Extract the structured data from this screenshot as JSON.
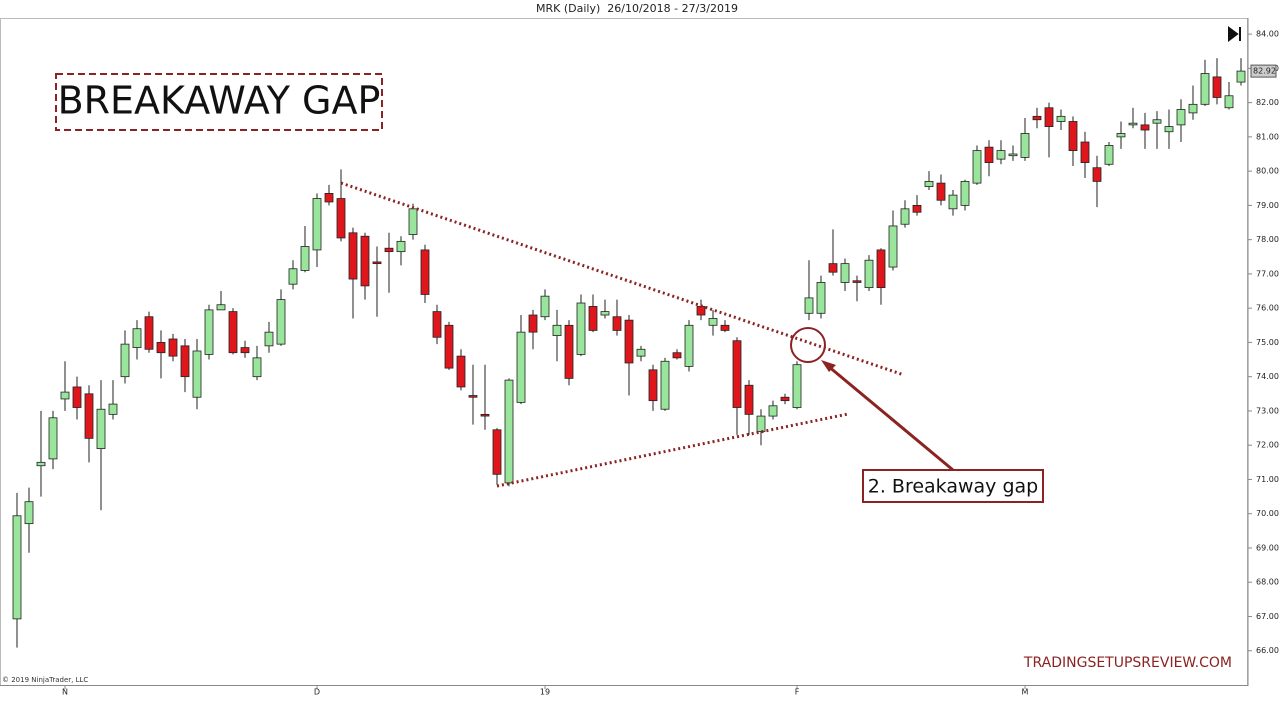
{
  "chart_data": {
    "type": "candlestick",
    "title": "MRK (Daily)  26/10/2018 - 27/3/2019",
    "categories": [
      null,
      null,
      null,
      null,
      "N",
      null,
      null,
      null,
      null,
      null,
      null,
      null,
      null,
      null,
      null,
      null,
      null,
      null,
      null,
      null,
      null,
      null,
      null,
      null,
      null,
      "D",
      null,
      null,
      null,
      null,
      null,
      null,
      null,
      null,
      null,
      null,
      null,
      null,
      null,
      null,
      null,
      null,
      null,
      null,
      "19",
      null,
      null,
      null,
      null,
      null,
      null,
      null,
      null,
      null,
      null,
      null,
      null,
      null,
      null,
      null,
      null,
      null,
      null,
      null,
      null,
      "F",
      null,
      null,
      null,
      null,
      null,
      null,
      null,
      null,
      null,
      null,
      null,
      null,
      null,
      null,
      null,
      null,
      null,
      null,
      "M",
      null,
      null,
      null,
      null,
      null,
      null,
      null,
      null,
      null,
      null,
      null,
      null,
      null,
      null,
      null,
      null,
      null,
      null
    ],
    "open": [
      66.93,
      69.71,
      71.4,
      71.6,
      73.35,
      73.7,
      73.5,
      71.9,
      72.9,
      74.0,
      74.85,
      75.75,
      75.0,
      75.1,
      74.9,
      73.4,
      74.65,
      75.95,
      75.9,
      74.85,
      74.0,
      74.9,
      74.95,
      76.7,
      77.1,
      77.7,
      79.35,
      79.2,
      78.2,
      78.1,
      77.35,
      77.75,
      77.65,
      78.15,
      77.7,
      75.9,
      75.5,
      74.6,
      73.45,
      72.9,
      72.45,
      70.9,
      73.25,
      75.8,
      75.75,
      75.2,
      75.5,
      74.65,
      76.05,
      75.8,
      75.75,
      75.65,
      74.6,
      74.2,
      73.05,
      74.7,
      74.3,
      76.05,
      75.5,
      75.5,
      75.05,
      73.75,
      72.4,
      72.85,
      73.4,
      73.1,
      75.85,
      75.85,
      77.3,
      76.75,
      76.8,
      76.6,
      77.7,
      77.2,
      78.45,
      79.0,
      79.55,
      79.65,
      78.9,
      79.0,
      79.65,
      80.7,
      80.35,
      80.45,
      80.4,
      81.6,
      81.85,
      81.45,
      81.45,
      80.85,
      80.1,
      80.2,
      81.0,
      81.35,
      81.35,
      81.4,
      81.15,
      81.35,
      81.7,
      81.95,
      82.75,
      81.85,
      82.6
    ],
    "high": [
      70.61,
      70.76,
      73.0,
      73.0,
      74.45,
      74.0,
      73.75,
      73.9,
      73.9,
      75.35,
      75.65,
      75.9,
      75.35,
      75.25,
      75.1,
      75.1,
      76.1,
      76.5,
      76.0,
      75.05,
      74.9,
      75.6,
      76.55,
      77.4,
      78.4,
      79.35,
      79.6,
      80.05,
      78.35,
      78.2,
      77.8,
      78.2,
      78.1,
      79.05,
      77.85,
      76.1,
      75.6,
      74.8,
      74.35,
      74.35,
      72.5,
      73.95,
      75.8,
      75.95,
      76.55,
      75.95,
      75.65,
      76.4,
      76.4,
      76.25,
      76.25,
      75.8,
      74.9,
      74.35,
      74.55,
      74.8,
      75.65,
      76.25,
      75.95,
      75.65,
      75.15,
      73.9,
      73.05,
      73.3,
      73.5,
      74.45,
      77.4,
      76.95,
      78.3,
      77.45,
      76.95,
      77.55,
      77.75,
      78.85,
      79.15,
      79.3,
      80.0,
      79.9,
      79.45,
      79.75,
      80.75,
      80.9,
      80.9,
      80.75,
      81.55,
      81.85,
      82.0,
      81.8,
      81.6,
      81.15,
      80.45,
      80.85,
      81.45,
      81.85,
      81.7,
      81.75,
      81.8,
      82.1,
      82.5,
      83.25,
      83.3,
      82.6,
      83.3
    ],
    "low": [
      66.09,
      68.86,
      70.5,
      71.3,
      73.0,
      72.75,
      71.5,
      70.1,
      72.75,
      73.8,
      74.5,
      74.7,
      73.95,
      74.45,
      73.55,
      73.05,
      74.5,
      75.95,
      74.65,
      74.55,
      73.9,
      74.7,
      74.9,
      76.55,
      77.05,
      77.2,
      79.0,
      77.95,
      75.7,
      76.25,
      75.75,
      76.45,
      77.25,
      78.0,
      76.15,
      74.95,
      74.2,
      73.6,
      72.6,
      72.45,
      70.85,
      70.8,
      73.2,
      74.8,
      75.65,
      74.45,
      73.75,
      74.6,
      75.3,
      75.7,
      75.2,
      73.45,
      74.45,
      73.0,
      73.0,
      74.5,
      74.15,
      75.65,
      75.2,
      75.3,
      72.3,
      72.3,
      72.0,
      72.75,
      73.2,
      73.05,
      75.65,
      75.7,
      76.95,
      76.5,
      76.2,
      76.5,
      76.1,
      77.1,
      78.35,
      78.7,
      79.45,
      79.0,
      78.7,
      78.85,
      79.6,
      79.85,
      80.2,
      80.3,
      80.3,
      81.25,
      80.4,
      81.2,
      80.15,
      79.8,
      78.95,
      80.15,
      80.65,
      81.25,
      80.65,
      80.65,
      80.65,
      80.85,
      81.5,
      81.9,
      81.95,
      81.8,
      82.5
    ],
    "close": [
      69.94,
      70.35,
      71.5,
      72.8,
      73.55,
      73.1,
      72.2,
      73.05,
      73.2,
      74.95,
      75.4,
      74.8,
      74.7,
      74.6,
      74.0,
      74.75,
      75.95,
      76.1,
      74.7,
      74.7,
      74.55,
      75.3,
      76.25,
      77.15,
      77.8,
      79.2,
      79.1,
      78.05,
      76.85,
      76.65,
      77.3,
      77.65,
      77.95,
      78.9,
      76.4,
      75.15,
      74.25,
      73.7,
      73.4,
      72.85,
      71.15,
      73.9,
      75.3,
      75.3,
      76.35,
      75.5,
      73.95,
      76.15,
      75.35,
      75.9,
      75.35,
      74.4,
      74.8,
      73.3,
      74.45,
      74.55,
      75.5,
      75.8,
      75.7,
      75.35,
      73.1,
      72.9,
      72.85,
      73.15,
      73.3,
      74.35,
      76.3,
      76.75,
      77.05,
      77.3,
      76.75,
      77.4,
      76.6,
      78.4,
      78.9,
      78.8,
      79.7,
      79.15,
      79.3,
      79.7,
      80.6,
      80.25,
      80.6,
      80.5,
      81.1,
      81.5,
      81.3,
      81.6,
      80.6,
      80.25,
      79.7,
      80.75,
      81.1,
      81.4,
      81.2,
      81.5,
      81.3,
      81.8,
      81.95,
      82.85,
      82.15,
      82.2,
      82.92
    ],
    "up_color": "#98e59b",
    "down_color": "#e0161d",
    "ylim": [
      65.0,
      84.47
    ],
    "yticks": [
      {
        "value": 66,
        "label": "66.00"
      },
      {
        "value": 67,
        "label": "67.00"
      },
      {
        "value": 68,
        "label": "68.00"
      },
      {
        "value": 69,
        "label": "69.00"
      },
      {
        "value": 70,
        "label": "70.00"
      },
      {
        "value": 71,
        "label": "71.00"
      },
      {
        "value": 72,
        "label": "72.00"
      },
      {
        "value": 73,
        "label": "73.00"
      },
      {
        "value": 74,
        "label": "74.00"
      },
      {
        "value": 75,
        "label": "75.00"
      },
      {
        "value": 76,
        "label": "76.00"
      },
      {
        "value": 77,
        "label": "77.00"
      },
      {
        "value": 78,
        "label": "78.00"
      },
      {
        "value": 79,
        "label": "79.00"
      },
      {
        "value": 80,
        "label": "80.00"
      },
      {
        "value": 81,
        "label": "81.00"
      },
      {
        "value": 82,
        "label": "82.00"
      },
      {
        "value": 83,
        "label": "83.00"
      },
      {
        "value": 84,
        "label": "84.00"
      }
    ],
    "last_price": 82.92,
    "annotations": [
      "BREAKAWAY GAP",
      "2. Breakaway gap"
    ],
    "watermark": "TRADINGSETUPSREVIEW.COM",
    "copyright": "© 2019 NinjaTrader, LLC"
  }
}
